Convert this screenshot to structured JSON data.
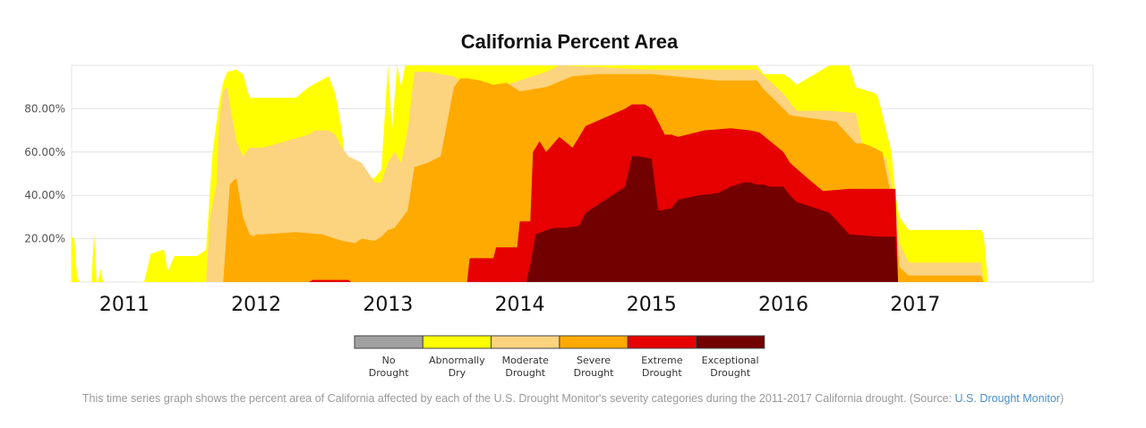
{
  "chart_data": {
    "type": "area",
    "title": "California Percent Area",
    "xlabel": "",
    "ylabel": "",
    "xlim": [
      2010.6,
      2018.35
    ],
    "ylim": [
      0,
      100
    ],
    "grid": true,
    "yticks": [
      {
        "value": 20,
        "label": "20.00%"
      },
      {
        "value": 40,
        "label": "40.00%"
      },
      {
        "value": 60,
        "label": "60.00%"
      },
      {
        "value": 80,
        "label": "80.00%"
      }
    ],
    "xticks": [
      {
        "value": 2011,
        "label": "2011"
      },
      {
        "value": 2012,
        "label": "2012"
      },
      {
        "value": 2013,
        "label": "2013"
      },
      {
        "value": 2014,
        "label": "2014"
      },
      {
        "value": 2015,
        "label": "2015"
      },
      {
        "value": 2016,
        "label": "2016"
      },
      {
        "value": 2017,
        "label": "2017"
      }
    ],
    "legend_position": "bottom-center",
    "series": [
      {
        "name": "Abnormally Dry",
        "color": "#ffff00",
        "x": [
          2010.6,
          2010.62,
          2010.64,
          2010.66,
          2010.68,
          2010.75,
          2010.77,
          2010.79,
          2010.8,
          2010.82,
          2010.84,
          2010.9,
          2011.15,
          2011.2,
          2011.3,
          2011.33,
          2011.38,
          2011.55,
          2011.62,
          2011.67,
          2011.72,
          2011.75,
          2011.78,
          2011.85,
          2011.9,
          2011.95,
          2012.0,
          2012.05,
          2012.3,
          2012.4,
          2012.55,
          2012.6,
          2012.65,
          2012.67,
          2012.75,
          2012.8,
          2012.83,
          2012.85,
          2012.9,
          2012.95,
          2013.0,
          2013.03,
          2013.07,
          2013.1,
          2013.13,
          2013.2,
          2014.0,
          2015.0,
          2015.8,
          2015.85,
          2016.0,
          2016.05,
          2016.1,
          2016.35,
          2016.5,
          2016.55,
          2016.7,
          2016.72,
          2016.78,
          2016.82,
          2016.85,
          2016.88,
          2016.95,
          2017.5,
          2017.52,
          2017.55,
          2018.35
        ],
        "values": [
          21,
          20,
          3,
          0,
          0,
          0,
          23,
          0,
          0,
          6,
          0,
          0,
          0,
          13,
          15,
          5,
          12,
          12,
          15,
          60,
          83,
          92,
          97,
          98,
          96,
          85,
          85,
          85,
          85,
          90,
          95,
          87,
          70,
          58,
          55,
          55,
          51,
          48,
          48,
          52,
          100,
          70,
          100,
          90,
          100,
          100,
          100,
          100,
          100,
          96,
          96,
          94,
          91,
          100,
          100,
          90,
          87,
          85,
          70,
          60,
          40,
          30,
          24,
          24,
          22,
          0,
          0
        ]
      },
      {
        "name": "Moderate Drought",
        "color": "#fcd37f",
        "x": [
          2010.6,
          2011.62,
          2011.65,
          2011.7,
          2011.72,
          2011.75,
          2011.78,
          2011.8,
          2011.85,
          2011.9,
          2011.95,
          2012.05,
          2012.4,
          2012.45,
          2012.55,
          2012.6,
          2012.65,
          2012.7,
          2012.8,
          2012.9,
          2012.95,
          2013.0,
          2013.05,
          2013.1,
          2013.15,
          2013.2,
          2013.3,
          2013.5,
          2013.65,
          2013.75,
          2013.9,
          2014.2,
          2014.3,
          2015.0,
          2015.8,
          2016.0,
          2016.1,
          2016.35,
          2016.55,
          2016.6,
          2016.7,
          2016.78,
          2016.85,
          2016.88,
          2016.95,
          2017.5,
          2017.52,
          2018.35
        ],
        "values": [
          0,
          0,
          30,
          45,
          75,
          88,
          90,
          82,
          65,
          58,
          62,
          62,
          68,
          70,
          70,
          68,
          62,
          58,
          55,
          46,
          46,
          55,
          60,
          55,
          70,
          97,
          97,
          95,
          88,
          85,
          91,
          97,
          100,
          98,
          98,
          87,
          79,
          79,
          78,
          62,
          62,
          57,
          35,
          18,
          9,
          9,
          0,
          0
        ]
      },
      {
        "name": "Severe Drought",
        "color": "#ffaa00",
        "x": [
          2010.6,
          2011.62,
          2011.75,
          2011.77,
          2011.8,
          2011.85,
          2011.9,
          2011.95,
          2011.98,
          2012.0,
          2012.05,
          2012.3,
          2012.5,
          2012.6,
          2012.65,
          2012.75,
          2012.8,
          2012.9,
          2012.95,
          2013.0,
          2013.05,
          2013.1,
          2013.15,
          2013.2,
          2013.3,
          2013.4,
          2013.5,
          2013.55,
          2013.6,
          2013.7,
          2013.8,
          2013.9,
          2014.0,
          2014.2,
          2014.4,
          2014.6,
          2015.0,
          2015.5,
          2015.8,
          2015.85,
          2015.95,
          2016.05,
          2016.4,
          2016.55,
          2016.6,
          2016.65,
          2016.75,
          2016.85,
          2016.88,
          2016.95,
          2017.5,
          2017.52,
          2018.35
        ],
        "values": [
          0,
          0,
          0,
          18,
          45,
          48,
          30,
          22,
          21,
          22,
          22,
          23,
          22,
          20,
          19,
          18,
          20,
          19,
          21,
          24,
          25,
          29,
          33,
          53,
          55,
          58,
          90,
          94,
          94,
          93,
          91,
          92,
          88,
          90,
          95,
          96,
          96,
          93,
          93,
          89,
          83,
          77,
          74,
          64,
          64,
          63,
          60,
          30,
          7,
          3,
          3,
          0,
          0
        ]
      },
      {
        "name": "Extreme Drought",
        "color": "#e60000",
        "x": [
          2010.6,
          2012.4,
          2012.43,
          2012.5,
          2012.7,
          2012.72,
          2013.6,
          2013.62,
          2013.8,
          2013.82,
          2013.98,
          2014.0,
          2014.05,
          2014.08,
          2014.1,
          2014.15,
          2014.2,
          2014.3,
          2014.4,
          2014.5,
          2014.8,
          2014.85,
          2014.95,
          2015.0,
          2015.1,
          2015.15,
          2015.2,
          2015.4,
          2015.6,
          2015.75,
          2015.82,
          2015.9,
          2016.0,
          2016.05,
          2016.2,
          2016.3,
          2016.5,
          2016.72,
          2016.8,
          2016.85,
          2016.87,
          2018.35
        ],
        "values": [
          0,
          0,
          1,
          1,
          1,
          0,
          0,
          11,
          11,
          16,
          16,
          28,
          28,
          28,
          60,
          65,
          60,
          67,
          62,
          72,
          80,
          82,
          82,
          80,
          68,
          68,
          67,
          70,
          71,
          70,
          69,
          65,
          60,
          55,
          47,
          42,
          43,
          43,
          43,
          43,
          0,
          0
        ]
      },
      {
        "name": "Exceptional Drought",
        "color": "#730000",
        "x": [
          2010.6,
          2014.05,
          2014.08,
          2014.12,
          2014.25,
          2014.35,
          2014.45,
          2014.5,
          2014.6,
          2014.8,
          2014.85,
          2014.9,
          2015.0,
          2015.05,
          2015.15,
          2015.2,
          2015.35,
          2015.5,
          2015.6,
          2015.7,
          2015.75,
          2015.8,
          2015.85,
          2015.9,
          2016.0,
          2016.05,
          2016.1,
          2016.35,
          2016.5,
          2016.72,
          2016.85,
          2016.87,
          2018.35
        ],
        "values": [
          0,
          0,
          8,
          22,
          25,
          25,
          26,
          32,
          36,
          44,
          58,
          58,
          57,
          33,
          34,
          38,
          40,
          41,
          44,
          46,
          46,
          45,
          45,
          44,
          44,
          40,
          37,
          32,
          22,
          21,
          21,
          0,
          0
        ]
      },
      {
        "name": "No Drought",
        "color": "#a0a0a0",
        "x": [],
        "values": []
      }
    ],
    "legend": [
      {
        "name": "No Drought",
        "label_lines": [
          "No",
          "Drought"
        ],
        "color": "#a0a0a0"
      },
      {
        "name": "Abnormally Dry",
        "label_lines": [
          "Abnormally",
          "Dry"
        ],
        "color": "#ffff00"
      },
      {
        "name": "Moderate Drought",
        "label_lines": [
          "Moderate",
          "Drought"
        ],
        "color": "#fcd37f"
      },
      {
        "name": "Severe Drought",
        "label_lines": [
          "Severe",
          "Drought"
        ],
        "color": "#ffaa00"
      },
      {
        "name": "Extreme Drought",
        "label_lines": [
          "Extreme",
          "Drought"
        ],
        "color": "#e60000"
      },
      {
        "name": "Exceptional Drought",
        "label_lines": [
          "Exceptional",
          "Drought"
        ],
        "color": "#730000"
      }
    ]
  },
  "caption": {
    "text": "This time series graph shows the percent area of California affected by each of the U.S. Drought Monitor's severity categories during the 2011-2017 California drought. (Source: ",
    "link_text": "U.S. Drought Monitor",
    "suffix": ")"
  }
}
